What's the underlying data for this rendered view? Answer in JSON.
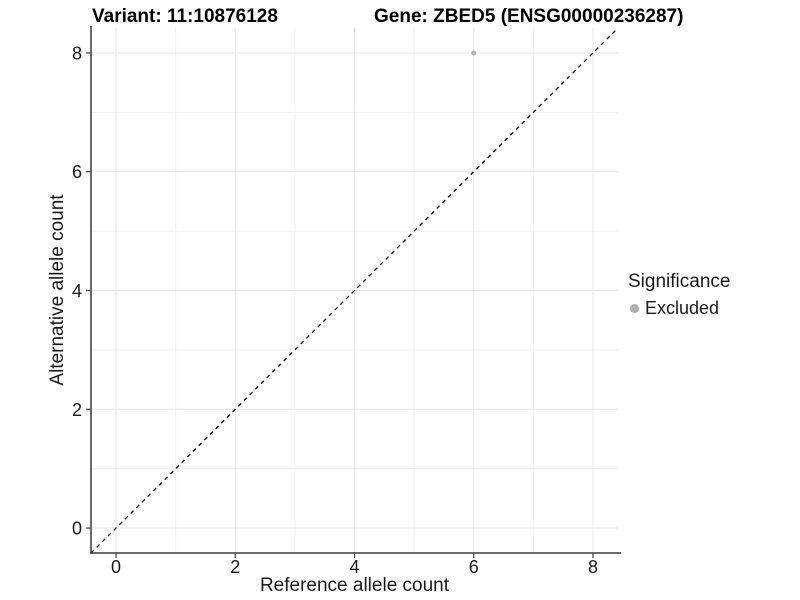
{
  "header": {
    "variant_title": "Variant: 11:10876128",
    "gene_title": "Gene: ZBED5 (ENSG00000236287)"
  },
  "legend": {
    "title": "Significance",
    "items": [
      {
        "label": "Excluded",
        "color": "#b0b0b0"
      }
    ]
  },
  "colors": {
    "background": "#ffffff",
    "grid_major": "#e6e6e6",
    "grid_minor": "#f1f1f1",
    "axis_line": "#3a3a3a",
    "tick_mark": "#4d4d4d",
    "tick_label": "#1a1a1a",
    "identity_line": "#000000",
    "point": "#b5b5b5"
  },
  "chart_data": {
    "type": "scatter",
    "title": "Variant: 11:10876128 — Gene: ZBED5 (ENSG00000236287)",
    "xlabel": "Reference allele count",
    "ylabel": "Alternative allele count",
    "xlim": [
      -0.42,
      8.42
    ],
    "ylim": [
      -0.42,
      8.42
    ],
    "x_ticks": [
      0,
      2,
      4,
      6,
      8
    ],
    "y_ticks": [
      0,
      2,
      4,
      6,
      8
    ],
    "x_minor_ticks": [
      1,
      3,
      5,
      7
    ],
    "y_minor_ticks": [
      1,
      3,
      5,
      7
    ],
    "grid": true,
    "legend_position": "right",
    "reference_line": {
      "kind": "identity y=x",
      "style": "dashed",
      "color": "#000000"
    },
    "series": [
      {
        "name": "Excluded",
        "type": "scatter",
        "color": "#b5b5b5",
        "points": [
          {
            "x": 6,
            "y": 8
          }
        ]
      }
    ]
  }
}
